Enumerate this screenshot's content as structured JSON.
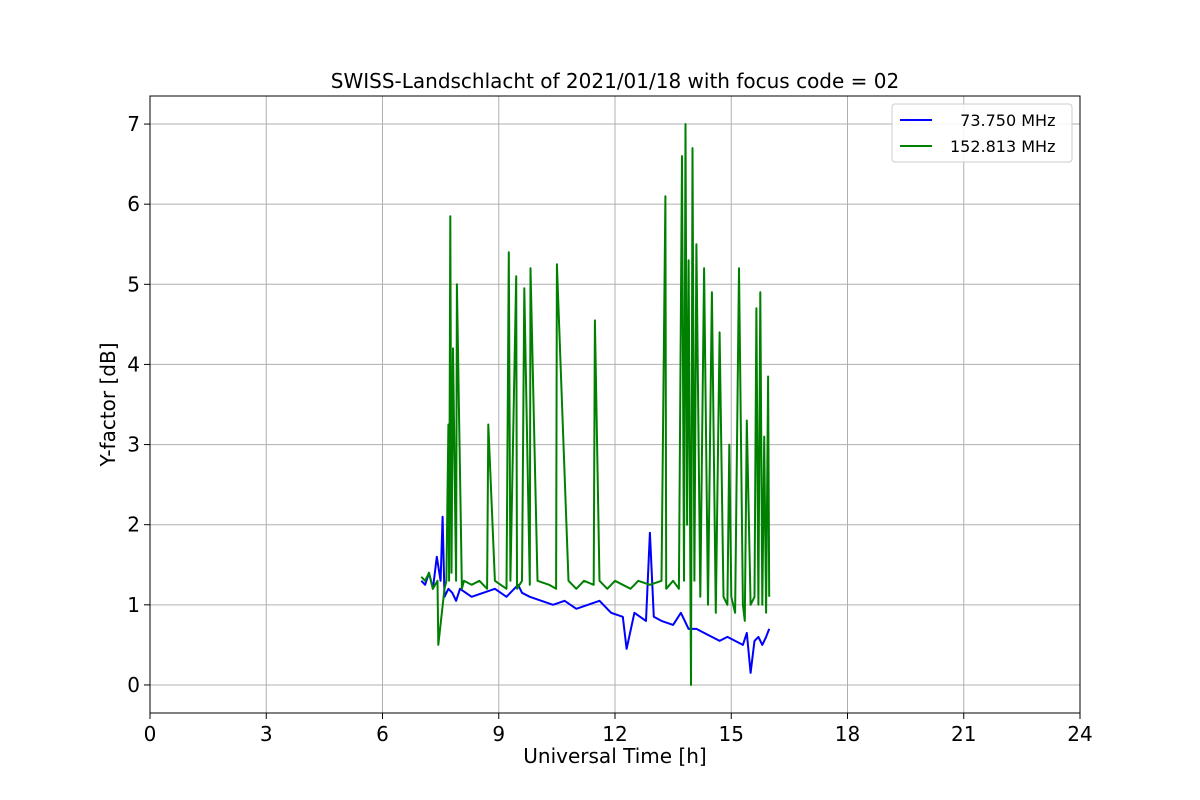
{
  "chart_data": {
    "type": "line",
    "title": "SWISS-Landschlacht of 2021/01/18 with focus code = 02",
    "xlabel": "Universal Time [h]",
    "ylabel": "Y-factor [dB]",
    "xlim": [
      0,
      24
    ],
    "ylim": [
      -0.35,
      7.35
    ],
    "xticks": [
      0,
      3,
      6,
      9,
      12,
      15,
      18,
      21,
      24
    ],
    "yticks": [
      0,
      1,
      2,
      3,
      4,
      5,
      6,
      7
    ],
    "grid": true,
    "legend_position": "top-right",
    "series": [
      {
        "name": "  73.750 MHz",
        "color": "#0000ff",
        "x": [
          7.0,
          7.1,
          7.2,
          7.3,
          7.4,
          7.5,
          7.55,
          7.6,
          7.7,
          7.8,
          7.9,
          8.0,
          8.3,
          8.6,
          8.9,
          9.2,
          9.5,
          9.6,
          9.8,
          10.1,
          10.4,
          10.7,
          11.0,
          11.3,
          11.6,
          11.9,
          12.2,
          12.3,
          12.5,
          12.8,
          12.9,
          13.0,
          13.2,
          13.5,
          13.7,
          13.9,
          14.1,
          14.3,
          14.5,
          14.7,
          14.9,
          15.1,
          15.3,
          15.4,
          15.5,
          15.6,
          15.7,
          15.8,
          15.9,
          15.98
        ],
        "y": [
          1.3,
          1.25,
          1.4,
          1.2,
          1.6,
          1.3,
          2.1,
          1.1,
          1.2,
          1.15,
          1.05,
          1.2,
          1.1,
          1.15,
          1.2,
          1.1,
          1.25,
          1.15,
          1.1,
          1.05,
          1.0,
          1.05,
          0.95,
          1.0,
          1.05,
          0.9,
          0.85,
          0.45,
          0.9,
          0.8,
          1.9,
          0.85,
          0.8,
          0.75,
          0.9,
          0.7,
          0.7,
          0.65,
          0.6,
          0.55,
          0.6,
          0.55,
          0.5,
          0.65,
          0.15,
          0.55,
          0.6,
          0.5,
          0.6,
          0.7
        ]
      },
      {
        "name": "152.813 MHz",
        "color": "#008000",
        "x": [
          7.0,
          7.1,
          7.2,
          7.3,
          7.42,
          7.44,
          7.6,
          7.65,
          7.7,
          7.72,
          7.75,
          7.78,
          7.82,
          7.9,
          7.92,
          8.05,
          8.1,
          8.3,
          8.5,
          8.7,
          8.73,
          8.9,
          9.2,
          9.26,
          9.3,
          9.45,
          9.47,
          9.6,
          9.66,
          9.8,
          9.82,
          10.0,
          10.3,
          10.48,
          10.5,
          10.8,
          11.0,
          11.2,
          11.45,
          11.48,
          11.6,
          11.8,
          12.0,
          12.2,
          12.4,
          12.6,
          12.9,
          13.2,
          13.3,
          13.32,
          13.5,
          13.65,
          13.73,
          13.78,
          13.82,
          13.86,
          13.9,
          13.96,
          14.0,
          14.05,
          14.1,
          14.2,
          14.3,
          14.4,
          14.5,
          14.6,
          14.7,
          14.8,
          14.9,
          14.95,
          15.0,
          15.1,
          15.2,
          15.3,
          15.35,
          15.4,
          15.5,
          15.6,
          15.65,
          15.7,
          15.75,
          15.8,
          15.85,
          15.9,
          15.95,
          15.98
        ],
        "y": [
          1.35,
          1.3,
          1.4,
          1.2,
          1.3,
          0.5,
          1.2,
          1.3,
          3.25,
          1.3,
          5.85,
          1.4,
          4.2,
          1.3,
          5.0,
          1.2,
          1.3,
          1.25,
          1.3,
          1.2,
          3.25,
          1.3,
          1.2,
          5.4,
          1.3,
          5.1,
          1.2,
          1.3,
          4.95,
          1.25,
          5.2,
          1.3,
          1.25,
          1.2,
          5.25,
          1.3,
          1.2,
          1.3,
          1.25,
          4.55,
          1.3,
          1.2,
          1.3,
          1.25,
          1.2,
          1.3,
          1.25,
          1.3,
          6.1,
          1.2,
          1.3,
          1.2,
          6.6,
          1.3,
          7.0,
          2.0,
          5.3,
          0.0,
          6.7,
          1.3,
          5.5,
          1.1,
          5.2,
          1.0,
          4.9,
          0.9,
          4.4,
          1.1,
          1.0,
          3.0,
          1.1,
          0.9,
          5.2,
          1.0,
          0.8,
          3.3,
          1.0,
          1.1,
          4.7,
          1.0,
          4.9,
          1.0,
          3.1,
          0.9,
          3.85,
          1.1
        ]
      }
    ]
  }
}
